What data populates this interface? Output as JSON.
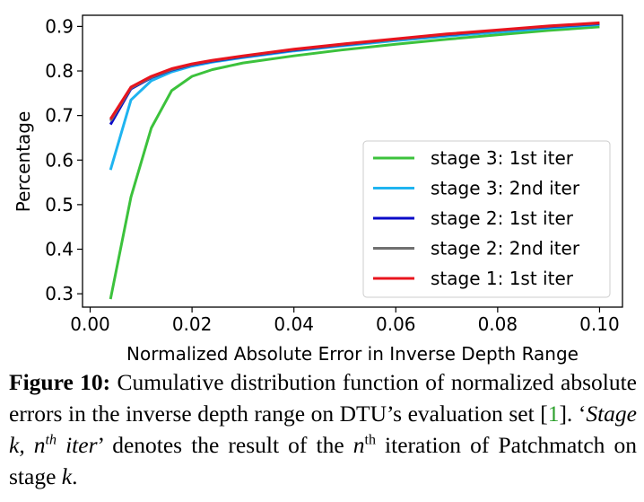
{
  "chart_data": {
    "type": "line",
    "xlabel": "Normalized Absolute Error in Inverse Depth Range",
    "ylabel": "Percentage",
    "xlim": [
      -0.0015,
      0.1045
    ],
    "ylim": [
      0.27,
      0.925
    ],
    "xticks": [
      0.0,
      0.02,
      0.04,
      0.06,
      0.08,
      0.1
    ],
    "xtick_labels": [
      "0.00",
      "0.02",
      "0.04",
      "0.06",
      "0.08",
      "0.10"
    ],
    "yticks": [
      0.3,
      0.4,
      0.5,
      0.6,
      0.7,
      0.8,
      0.9
    ],
    "ytick_labels": [
      "0.3",
      "0.4",
      "0.5",
      "0.6",
      "0.7",
      "0.8",
      "0.9"
    ],
    "grid": false,
    "legend_position": "lower-right",
    "x": [
      0.004,
      0.008,
      0.012,
      0.016,
      0.02,
      0.024,
      0.03,
      0.04,
      0.05,
      0.06,
      0.07,
      0.08,
      0.09,
      0.1
    ],
    "series": [
      {
        "name": "stage 3: 1st iter",
        "color": "#3cc23c",
        "values": [
          0.288,
          0.517,
          0.672,
          0.756,
          0.788,
          0.803,
          0.818,
          0.834,
          0.848,
          0.86,
          0.871,
          0.881,
          0.891,
          0.899
        ]
      },
      {
        "name": "stage 3: 2nd iter",
        "color": "#1fb4f0",
        "values": [
          0.578,
          0.735,
          0.778,
          0.798,
          0.811,
          0.82,
          0.83,
          0.845,
          0.857,
          0.868,
          0.878,
          0.887,
          0.896,
          0.904
        ]
      },
      {
        "name": "stage 2: 1st iter",
        "color": "#0a0ac8",
        "values": [
          0.68,
          0.76,
          0.785,
          0.802,
          0.814,
          0.822,
          0.832,
          0.847,
          0.859,
          0.871,
          0.881,
          0.891,
          0.899,
          0.906
        ]
      },
      {
        "name": "stage 2: 2nd iter",
        "color": "#707070",
        "values": [
          0.688,
          0.762,
          0.786,
          0.803,
          0.815,
          0.823,
          0.833,
          0.848,
          0.86,
          0.871,
          0.882,
          0.891,
          0.9,
          0.907
        ]
      },
      {
        "name": "stage 1: 1st iter",
        "color": "#e8141e",
        "values": [
          0.692,
          0.764,
          0.788,
          0.805,
          0.816,
          0.824,
          0.834,
          0.849,
          0.861,
          0.872,
          0.883,
          0.892,
          0.901,
          0.908
        ]
      }
    ]
  },
  "caption": {
    "label": "Figure 10:",
    "text_1": " Cumulative distribution function of normalized absolute errors in the inverse depth range on DTU’s evaluation set [",
    "ref": "1",
    "text_2": "]. ‘",
    "italic_1": "Stage k, n",
    "italic_sup": "th",
    "italic_2": " iter",
    "text_3": "’ denotes the result of the ",
    "n": "n",
    "sup": "th",
    "text_4": " iteration of Patchmatch on stage ",
    "k": "k",
    "text_5": "."
  }
}
